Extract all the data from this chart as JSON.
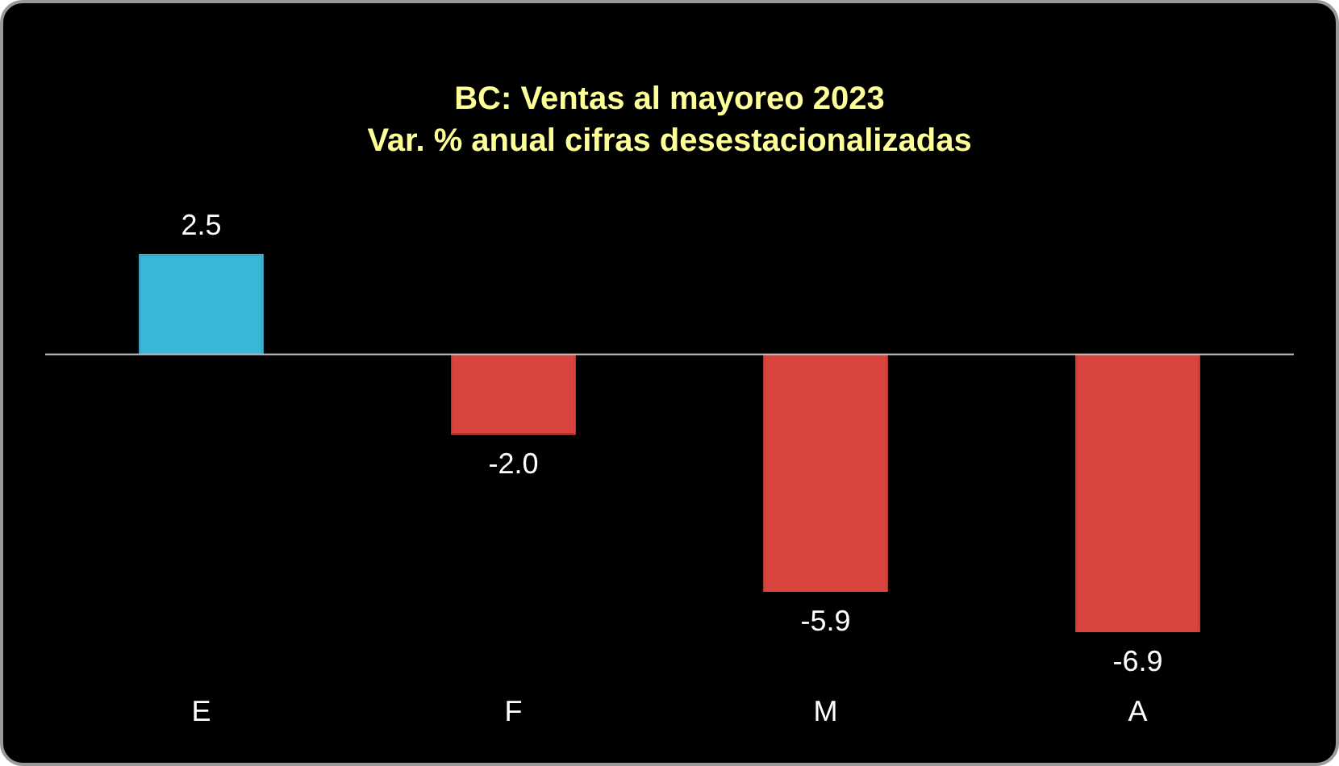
{
  "chart_data": {
    "type": "bar",
    "title": "BC: Ventas al mayoreo 2023",
    "subtitle": "Var. % anual cifras desestacionalizadas",
    "categories": [
      "E",
      "F",
      "M",
      "A"
    ],
    "values": [
      2.5,
      -2.0,
      -5.9,
      -6.9
    ],
    "value_labels": [
      "2.5",
      "-2.0",
      "-5.9",
      "-6.9"
    ],
    "colors": [
      "#3ab6d8",
      "#d9443f",
      "#d9443f",
      "#d9443f"
    ],
    "legend": false
  }
}
